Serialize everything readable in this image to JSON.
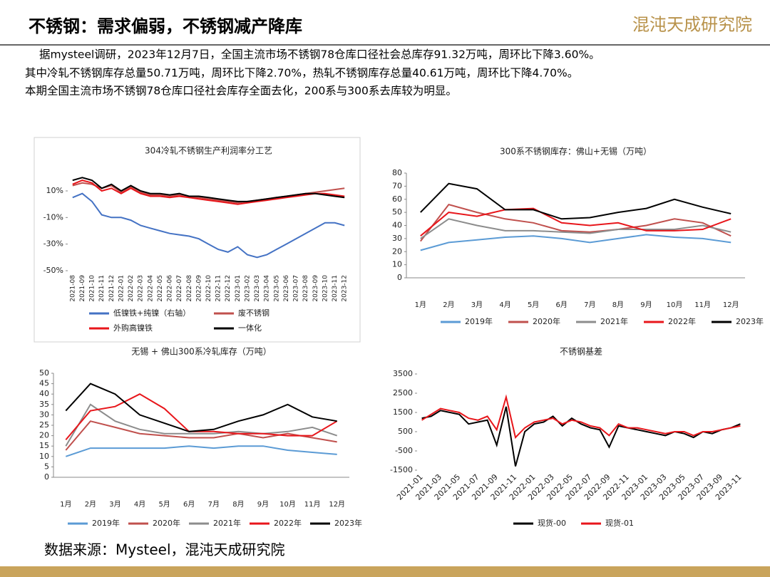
{
  "header": {
    "title": "不锈钢：需求偏弱，不锈钢减产降库",
    "logo": "混沌天成研究院"
  },
  "intro": [
    "据mysteel调研，2023年12月7日，全国主流市场不锈钢78仓库口径社会总库存91.32万吨，周环比下降3.60%。",
    "其中冷轧不锈钢库存总量50.71万吨，周环比下降2.70%，热轧不锈钢库存总量40.61万吨，周环比下降4.70%。",
    "本期全国主流市场不锈钢78仓库口径社会库存全面去化，200系与300系去库较为明显。"
  ],
  "source": "数据来源：Mysteel，混沌天成研究院",
  "chart_data": [
    {
      "type": "line",
      "title": "304冷轧不锈钢生产利润率分工艺",
      "x_rotate": "vertical",
      "legend": "bottom-grid",
      "categories": [
        "2021-08",
        "2021-09",
        "2021-10",
        "2021-11",
        "2021-12",
        "2022-01",
        "2022-02",
        "2022-03",
        "2022-04",
        "2022-05",
        "2022-06",
        "2022-07",
        "2022-08",
        "2022-09",
        "2022-10",
        "2022-11",
        "2022-12",
        "2023-01",
        "2023-02",
        "2023-03",
        "2023-04",
        "2023-05",
        "2023-06",
        "2023-07",
        "2023-08",
        "2023-09",
        "2023-10",
        "2023-11",
        "2023-12"
      ],
      "ylim": [
        -50,
        25
      ],
      "yticks": [
        {
          "value": 10,
          "label": "10%"
        },
        {
          "value": -10,
          "label": "-10%"
        },
        {
          "value": -30,
          "label": "-30%"
        },
        {
          "value": -50,
          "label": "-50%"
        }
      ],
      "series": [
        {
          "name": "低镍铁+纯镍（右轴）",
          "color": "#4472c4",
          "values": [
            5,
            8,
            2,
            -8,
            -10,
            -10,
            -12,
            -16,
            -18,
            -20,
            -22,
            -23,
            -24,
            -26,
            -30,
            -34,
            -36,
            -32,
            -38,
            -40,
            -38,
            -34,
            -30,
            -26,
            -22,
            -18,
            -14,
            -14,
            -16
          ]
        },
        {
          "name": "废不锈钢",
          "color": "#c0504d",
          "values": [
            14,
            16,
            15,
            12,
            14,
            9,
            13,
            9,
            7,
            7,
            6,
            7,
            5,
            5,
            4,
            3,
            2,
            1,
            2,
            3,
            4,
            5,
            6,
            7,
            8,
            9,
            10,
            11,
            12
          ]
        },
        {
          "name": "外购高镍铁",
          "color": "#e8161b",
          "values": [
            15,
            18,
            16,
            10,
            12,
            8,
            12,
            8,
            6,
            6,
            5,
            6,
            5,
            4,
            3,
            2,
            1,
            0,
            1,
            2,
            3,
            4,
            5,
            6,
            7,
            8,
            8,
            7,
            6
          ]
        },
        {
          "name": "一体化",
          "color": "#000000",
          "values": [
            18,
            20,
            18,
            12,
            15,
            10,
            14,
            10,
            8,
            8,
            7,
            8,
            6,
            6,
            5,
            4,
            3,
            2,
            2,
            3,
            4,
            5,
            6,
            7,
            8,
            8,
            7,
            6,
            5
          ]
        }
      ]
    },
    {
      "type": "line",
      "title": "300系不锈钢库存：佛山+无锡（万吨）",
      "legend": "bottom-row",
      "categories": [
        "1月",
        "2月",
        "3月",
        "4月",
        "5月",
        "6月",
        "7月",
        "8月",
        "9月",
        "10月",
        "11月",
        "12月"
      ],
      "ylim": [
        0,
        80
      ],
      "yticks": [
        0,
        10,
        20,
        30,
        40,
        50,
        60,
        70,
        80
      ],
      "series": [
        {
          "name": "2019年",
          "color": "#5b9bd5",
          "values": [
            21,
            27,
            29,
            31,
            32,
            30,
            27,
            30,
            33,
            31,
            30,
            27
          ]
        },
        {
          "name": "2020年",
          "color": "#c0504d",
          "values": [
            28,
            56,
            50,
            45,
            42,
            36,
            35,
            37,
            40,
            45,
            42,
            32
          ]
        },
        {
          "name": "2021年",
          "color": "#8c8c8c",
          "values": [
            30,
            45,
            40,
            36,
            36,
            35,
            34,
            37,
            37,
            37,
            40,
            35
          ]
        },
        {
          "name": "2022年",
          "color": "#e8161b",
          "values": [
            32,
            50,
            47,
            52,
            53,
            42,
            40,
            42,
            36,
            36,
            37,
            45
          ]
        },
        {
          "name": "2023年",
          "color": "#000000",
          "values": [
            50,
            72,
            68,
            52,
            52,
            45,
            46,
            50,
            53,
            60,
            54,
            49
          ]
        }
      ]
    },
    {
      "type": "line",
      "title": "无锡 + 佛山300系冷轧库存（万吨）",
      "legend": "bottom-row",
      "categories": [
        "1月",
        "2月",
        "3月",
        "4月",
        "5月",
        "6月",
        "7月",
        "8月",
        "9月",
        "10月",
        "11月",
        "12月"
      ],
      "ylim": [
        0,
        50
      ],
      "yticks": [
        0,
        5,
        10,
        15,
        20,
        25,
        30,
        35,
        40,
        45,
        50
      ],
      "series": [
        {
          "name": "2019年",
          "color": "#5b9bd5",
          "values": [
            10,
            14,
            14,
            14,
            14,
            15,
            14,
            15,
            15,
            13,
            12,
            11
          ]
        },
        {
          "name": "2020年",
          "color": "#c0504d",
          "values": [
            13,
            27,
            24,
            21,
            20,
            19,
            19,
            21,
            19,
            21,
            19,
            17
          ]
        },
        {
          "name": "2021年",
          "color": "#8c8c8c",
          "values": [
            15,
            35,
            27,
            23,
            21,
            21,
            21,
            22,
            21,
            22,
            24,
            20
          ]
        },
        {
          "name": "2022年",
          "color": "#e8161b",
          "values": [
            18,
            32,
            34,
            40,
            33,
            22,
            22,
            21,
            21,
            20,
            20,
            27
          ]
        },
        {
          "name": "2023年",
          "color": "#000000",
          "values": [
            32,
            45,
            40,
            30,
            26,
            22,
            23,
            27,
            30,
            35,
            29,
            27
          ]
        }
      ]
    },
    {
      "type": "line",
      "title": "不锈钢基差",
      "x_rotate": "diagonal",
      "legend": "bottom-row",
      "categories": [
        "2021-01",
        null,
        "2021-03",
        null,
        "2021-05",
        null,
        "2021-07",
        null,
        "2021-09",
        null,
        "2021-11",
        null,
        "2022-01",
        null,
        "2022-03",
        null,
        "2022-05",
        null,
        "2022-07",
        null,
        "2022-09",
        null,
        "2022-11",
        null,
        "2023-01",
        null,
        "2023-03",
        null,
        "2023-05",
        null,
        "2023-07",
        null,
        "2023-09",
        null,
        "2023-11"
      ],
      "ylim": [
        -1500,
        3500
      ],
      "yticks": [
        3500,
        2500,
        1500,
        500,
        -500,
        -1500
      ],
      "series": [
        {
          "name": "现货-00",
          "color": "#000000",
          "values": [
            1200,
            1300,
            1600,
            1500,
            1400,
            900,
            1000,
            1100,
            -200,
            1800,
            -1300,
            500,
            900,
            1000,
            1300,
            800,
            1200,
            900,
            700,
            600,
            -300,
            800,
            700,
            600,
            500,
            400,
            300,
            500,
            400,
            200,
            500,
            400,
            600,
            700,
            900
          ]
        },
        {
          "name": "现货-01",
          "color": "#e8161b",
          "values": [
            1100,
            1400,
            1700,
            1600,
            1500,
            1200,
            1100,
            1300,
            600,
            2300,
            200,
            700,
            1000,
            1100,
            1200,
            900,
            1100,
            1000,
            800,
            700,
            300,
            900,
            700,
            700,
            600,
            500,
            400,
            500,
            500,
            300,
            500,
            500,
            600,
            700,
            800
          ]
        }
      ]
    }
  ]
}
